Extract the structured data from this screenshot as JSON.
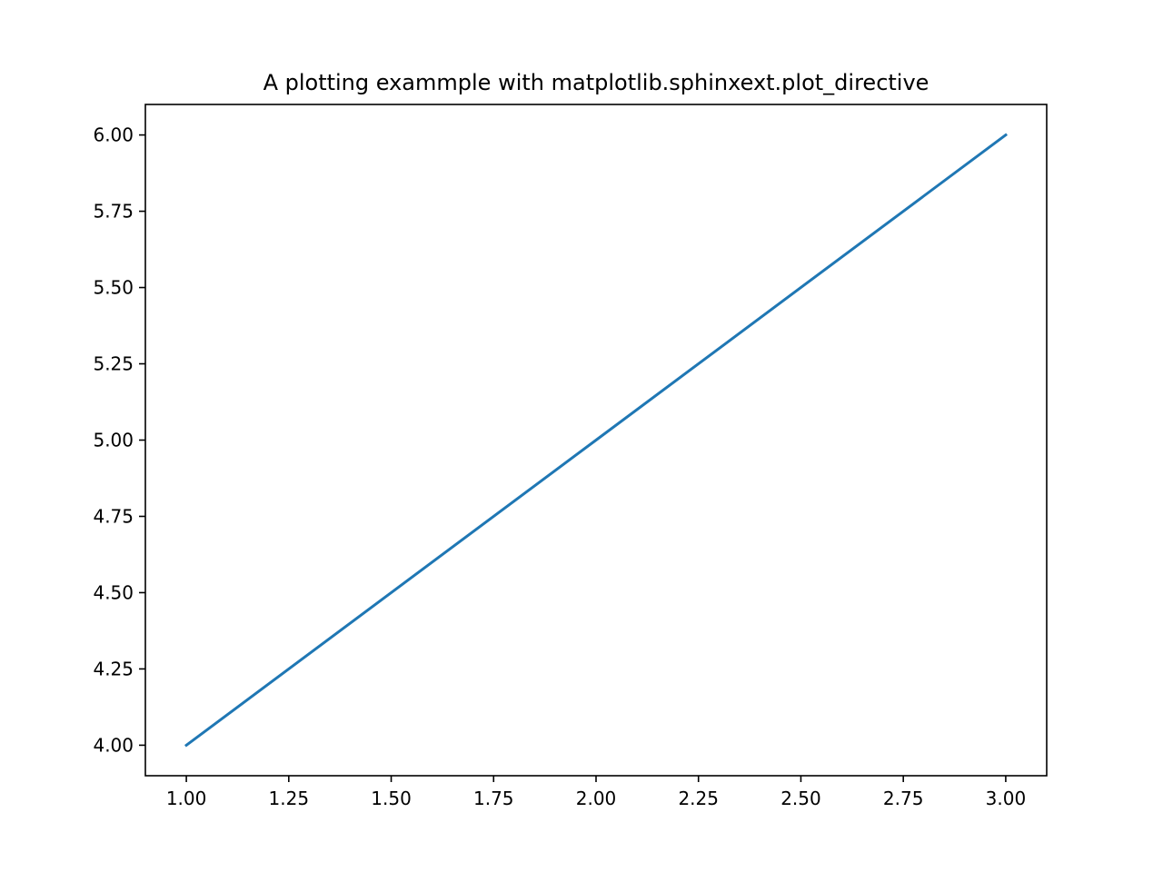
{
  "chart_data": {
    "type": "line",
    "title": "A plotting exammple with matplotlib.sphinxext.plot_directive",
    "xlabel": "",
    "ylabel": "",
    "x": [
      1,
      2,
      3
    ],
    "series": [
      {
        "values": [
          4,
          5,
          6
        ],
        "color": "#1f77b4"
      }
    ],
    "xlim": [
      0.9,
      3.1
    ],
    "ylim": [
      3.9,
      6.1
    ],
    "xticks": [
      1.0,
      1.25,
      1.5,
      1.75,
      2.0,
      2.25,
      2.5,
      2.75,
      3.0
    ],
    "xtick_labels": [
      "1.00",
      "1.25",
      "1.50",
      "1.75",
      "2.00",
      "2.25",
      "2.50",
      "2.75",
      "3.00"
    ],
    "yticks": [
      4.0,
      4.25,
      4.5,
      4.75,
      5.0,
      5.25,
      5.5,
      5.75,
      6.0
    ],
    "ytick_labels": [
      "4.00",
      "4.25",
      "4.50",
      "4.75",
      "5.00",
      "5.25",
      "5.50",
      "5.75",
      "6.00"
    ],
    "grid": false,
    "legend": "none"
  }
}
